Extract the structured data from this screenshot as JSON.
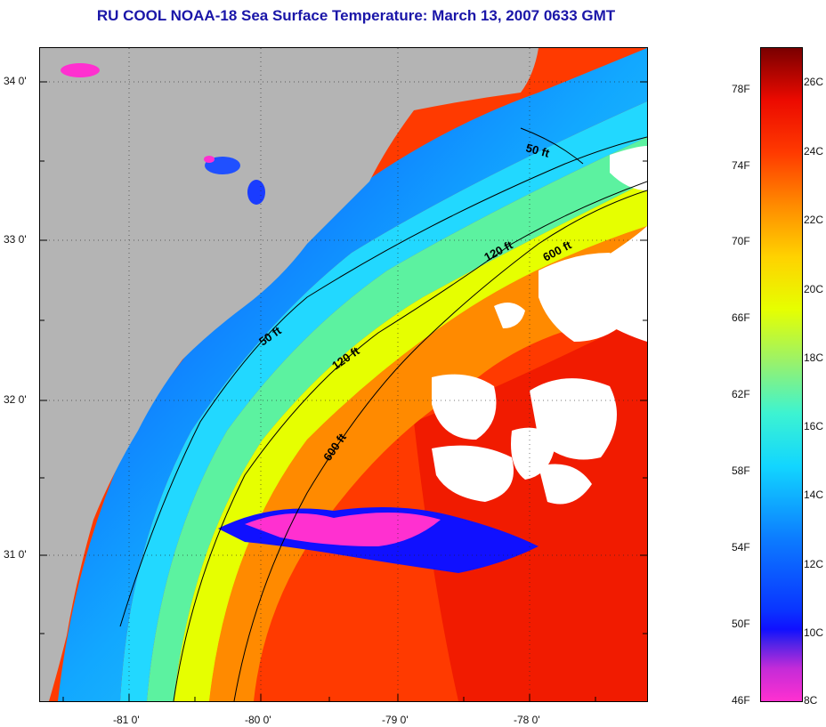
{
  "title": "RU COOL  NOAA-18  Sea Surface Temperature:  March 13, 2007 0633 GMT",
  "latitude_labels": [
    "34 0'",
    "33 0'",
    "32 0'",
    "31 0'"
  ],
  "longitude_labels": [
    "-81 0'",
    "-80 0'",
    "-79 0'",
    "-78 0'"
  ],
  "isobaths": [
    "50 ft",
    "120 ft",
    "600 ft"
  ],
  "contour_labels": [
    "50 ft",
    "120 ft",
    "600 ft",
    "50 ft",
    "120 ft",
    "600 ft"
  ],
  "colorbar": {
    "fahrenheit_labels": [
      "78F",
      "74F",
      "70F",
      "66F",
      "62F",
      "58F",
      "54F",
      "50F",
      "46F"
    ],
    "celsius_labels": [
      "26C",
      "24C",
      "22C",
      "20C",
      "18C",
      "16C",
      "14C",
      "12C",
      "10C",
      "8C"
    ],
    "stops": [
      "#ff30d0",
      "#c42bd8",
      "#1010ff",
      "#0c7dff",
      "#12d6ff",
      "#3cf3d2",
      "#9af26a",
      "#e6ff00",
      "#ffd200",
      "#ff8a00",
      "#ff3a00",
      "#ec0a00",
      "#7a0000"
    ]
  },
  "colors": {
    "land": "#b4b4b4",
    "cloud": "#ffffff",
    "warm_water": "#ff3a00",
    "title": "#1a16a8"
  }
}
